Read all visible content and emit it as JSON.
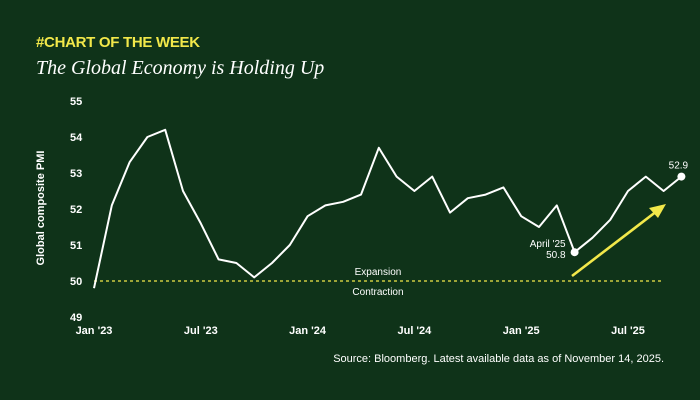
{
  "header": {
    "tag": "#CHART OF THE WEEK",
    "title": "The Global Economy is Holding Up"
  },
  "footer": {
    "source": "Source: Bloomberg. Latest available data as of November 14, 2025."
  },
  "colors": {
    "background": "#0f3319",
    "line": "#ffffff",
    "accent": "#f2e84a"
  },
  "chart_data": {
    "type": "line",
    "title": "The Global Economy is Holding Up",
    "xlabel": "",
    "ylabel": "Global composite PMI",
    "ylim": [
      49,
      55
    ],
    "yticks": [
      49,
      50,
      51,
      52,
      53,
      54,
      55
    ],
    "xticks": [
      {
        "index": 0,
        "label": "Jan '23"
      },
      {
        "index": 6,
        "label": "Jul '23"
      },
      {
        "index": 12,
        "label": "Jan '24"
      },
      {
        "index": 18,
        "label": "Jul '24"
      },
      {
        "index": 24,
        "label": "Jan '25"
      },
      {
        "index": 30,
        "label": "Jul '25"
      }
    ],
    "x": [
      "2023-01",
      "2023-02",
      "2023-03",
      "2023-04",
      "2023-05",
      "2023-06",
      "2023-07",
      "2023-08",
      "2023-09",
      "2023-10",
      "2023-11",
      "2023-12",
      "2024-01",
      "2024-02",
      "2024-03",
      "2024-04",
      "2024-05",
      "2024-06",
      "2024-07",
      "2024-08",
      "2024-09",
      "2024-10",
      "2024-11",
      "2024-12",
      "2025-01",
      "2025-02",
      "2025-03",
      "2025-04",
      "2025-05",
      "2025-06",
      "2025-07",
      "2025-08",
      "2025-09",
      "2025-10"
    ],
    "series": [
      {
        "values": [
          49.8,
          52.1,
          53.3,
          54.0,
          54.2,
          52.5,
          51.6,
          50.6,
          50.5,
          50.1,
          50.5,
          51.0,
          51.8,
          52.1,
          52.2,
          52.4,
          53.7,
          52.9,
          52.5,
          52.9,
          51.9,
          52.3,
          52.4,
          52.6,
          51.8,
          51.5,
          52.1,
          50.8,
          51.2,
          51.7,
          52.5,
          52.9,
          52.5,
          52.9
        ]
      }
    ],
    "reference_line": {
      "value": 50,
      "above_label": "Expansion",
      "below_label": "Contraction"
    },
    "annotations": [
      {
        "index": 27,
        "line1": "April '25",
        "line2": "50.8"
      },
      {
        "index": 33,
        "label": "52.9"
      }
    ],
    "grid": false,
    "legend": "none"
  }
}
